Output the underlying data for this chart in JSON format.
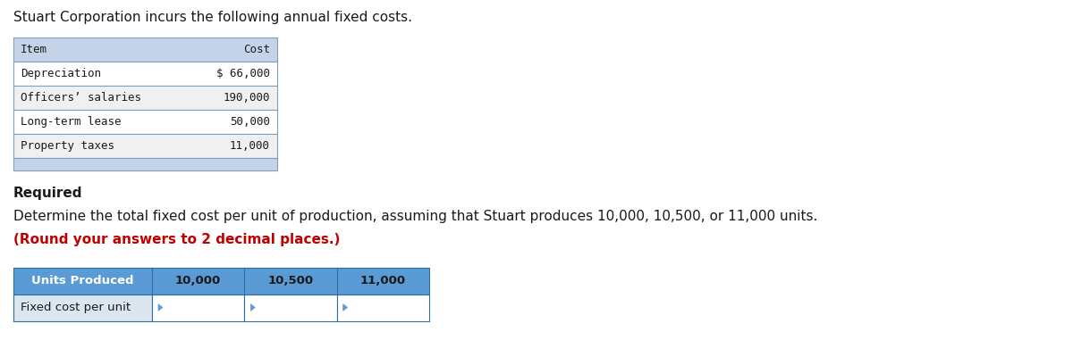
{
  "title": "Stuart Corporation incurs the following annual fixed costs.",
  "title_fontsize": 11,
  "table1_headers": [
    "Item",
    "Cost"
  ],
  "table1_rows": [
    [
      "Depreciation",
      "$ 66,000"
    ],
    [
      "Officers’ salaries",
      "190,000"
    ],
    [
      "Long-term lease",
      "50,000"
    ],
    [
      "Property taxes",
      "11,000"
    ]
  ],
  "table1_header_bg": "#c5d3e8",
  "table1_row_bg_odd": "#ffffff",
  "table1_row_bg_even": "#f0f0f0",
  "table1_footer_bg": "#c5d3e8",
  "required_label": "Required",
  "required_fontsize": 11,
  "instruction_text": "Determine the total fixed cost per unit of production, assuming that Stuart produces 10,000, 10,500, or 11,000 units.",
  "instruction_bold_text": "(Round your answers to 2 decimal places.)",
  "instruction_fontsize": 11,
  "table2_headers": [
    "Units Produced",
    "10,000",
    "10,500",
    "11,000"
  ],
  "table2_rows": [
    [
      "Fixed cost per unit",
      "",
      "",
      ""
    ]
  ],
  "table2_header_bg": "#5b9bd5",
  "table2_row_bg": "#dce6f1",
  "table2_cell_bg": "#ffffff",
  "font_color": "#1a1a1a",
  "red_color": "#c00000",
  "bg_color": "#ffffff",
  "mono_font": "DejaVu Sans Mono"
}
